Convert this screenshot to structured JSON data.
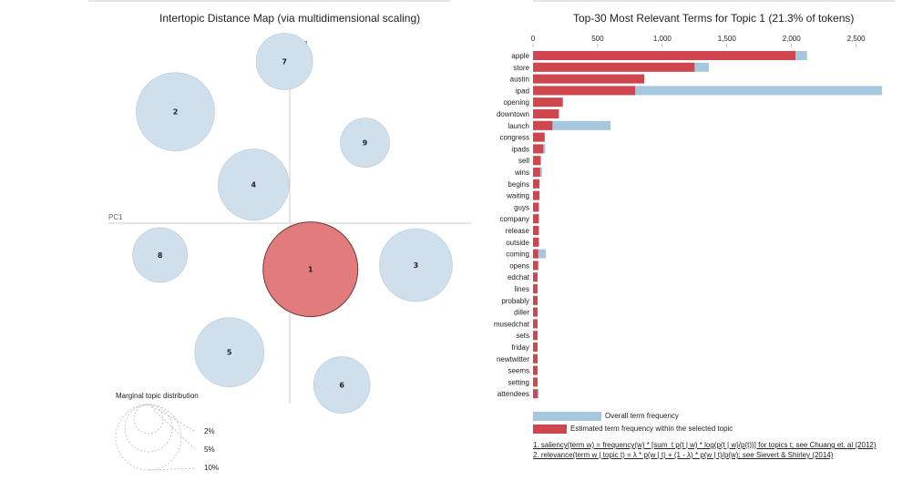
{
  "left_title": "Intertopic Distance Map (via multidimensional scaling)",
  "right_title": "Top-30 Most Relevant Terms for Topic 1 (21.3% of tokens)",
  "colors": {
    "topic_selected": "#e27c7c",
    "topic_other": "#cfe0ec",
    "bar_overall": "#a6c8df",
    "bar_topic": "#d0464f"
  },
  "pc1_label": "PC1",
  "pc2_label": "PC2",
  "marginal": {
    "title": "Marginal topic distribution",
    "sizes": [
      "2%",
      "5%",
      "10%"
    ]
  },
  "legend": {
    "overall": "Overall term frequency",
    "estimated": "Estimated term frequency within the selected topic"
  },
  "footnotes": {
    "f1": "1. saliency(term w) = frequency(w) * [sum_t p(t | w) * log(p(t | w)/p(t))] for topics t; see Chuang et. al (2012)",
    "f2": "2. relevance(term w | topic t) = λ * p(w | t) + (1 - λ) * p(w | t)/p(w); see Sievert & Shirley (2014)"
  },
  "chart_data": [
    {
      "type": "scatter",
      "title": "Intertopic Distance Map (via multidimensional scaling)",
      "xlabel": "PC1",
      "ylabel": "PC2",
      "selected": "1",
      "topics": [
        {
          "label": "1",
          "x": 0.35,
          "y": -0.55,
          "r": 52
        },
        {
          "label": "2",
          "x": -1.93,
          "y": 1.33,
          "r": 43
        },
        {
          "label": "3",
          "x": 2.13,
          "y": -0.5,
          "r": 40
        },
        {
          "label": "4",
          "x": -0.61,
          "y": 0.46,
          "r": 39
        },
        {
          "label": "5",
          "x": -1.02,
          "y": -1.54,
          "r": 38
        },
        {
          "label": "6",
          "x": 0.88,
          "y": -1.93,
          "r": 31
        },
        {
          "label": "7",
          "x": -0.09,
          "y": 1.93,
          "r": 31
        },
        {
          "label": "8",
          "x": -2.19,
          "y": -0.38,
          "r": 30
        },
        {
          "label": "9",
          "x": 1.27,
          "y": 0.96,
          "r": 27
        }
      ]
    },
    {
      "type": "bar",
      "title": "Top-30 Most Relevant Terms for Topic 1 (21.3% of tokens)",
      "xlim": [
        0,
        2700
      ],
      "ticks": [
        "0",
        "500",
        "1,000",
        "1,500",
        "2,000",
        "2,500"
      ],
      "tick_values": [
        0,
        500,
        1000,
        1500,
        2000,
        2500
      ],
      "categories": [
        "apple",
        "store",
        "austin",
        "ipad",
        "opening",
        "downtown",
        "launch",
        "congress",
        "ipads",
        "sell",
        "wins",
        "begins",
        "waiting",
        "guys",
        "company",
        "release",
        "outside",
        "coming",
        "opens",
        "edchat",
        "lines",
        "probably",
        "diller",
        "musedchat",
        "sets",
        "friday",
        "newtwitter",
        "seems",
        "setting",
        "attendees"
      ],
      "series": [
        {
          "name": "Overall term frequency",
          "values": [
            2120,
            1360,
            860,
            2700,
            230,
            200,
            600,
            90,
            95,
            60,
            70,
            50,
            50,
            45,
            45,
            45,
            45,
            100,
            40,
            35,
            35,
            35,
            35,
            35,
            35,
            35,
            35,
            35,
            35,
            45
          ]
        },
        {
          "name": "Estimated term frequency within the selected topic",
          "values": [
            2030,
            1250,
            860,
            790,
            230,
            200,
            150,
            90,
            80,
            60,
            55,
            50,
            50,
            45,
            45,
            45,
            45,
            40,
            40,
            35,
            35,
            35,
            35,
            35,
            35,
            35,
            35,
            35,
            35,
            35
          ]
        }
      ]
    }
  ]
}
